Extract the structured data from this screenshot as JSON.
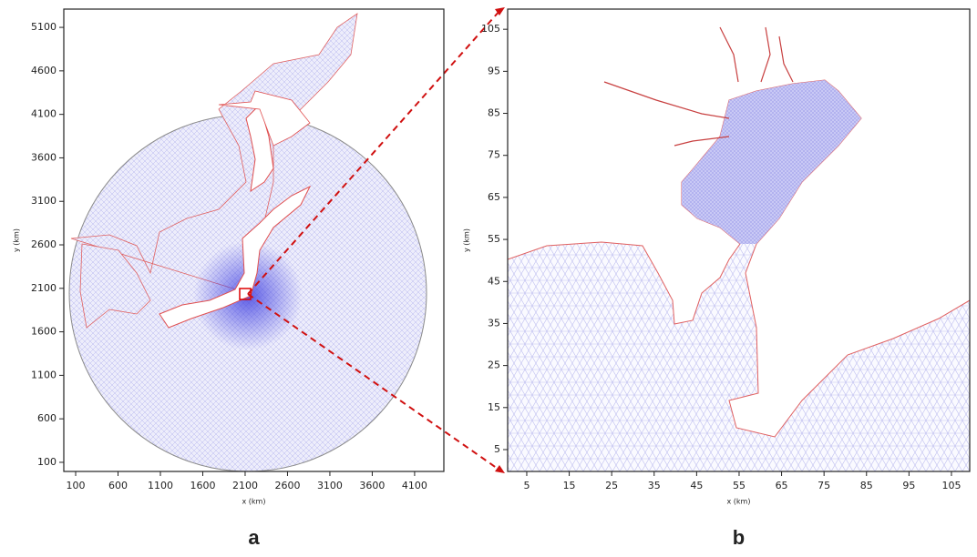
{
  "panels": [
    {
      "xlabel": "x (km)",
      "ylabel": "y (km)",
      "caption": "a",
      "xlim": [
        -40,
        4445
      ],
      "ylim": [
        -5,
        5310
      ],
      "xticks": [
        100,
        600,
        1100,
        1600,
        2100,
        2600,
        3100,
        3600,
        4100
      ],
      "yticks": [
        100,
        600,
        1100,
        1600,
        2100,
        2600,
        3100,
        3600,
        4100,
        4600,
        5100
      ]
    },
    {
      "xlabel": "x (km)",
      "ylabel": "y (km)",
      "caption": "b",
      "xlim": [
        0.5,
        109.3
      ],
      "ylim": [
        -0.2,
        109.8
      ],
      "xticks": [
        5,
        15,
        25,
        35,
        45,
        55,
        65,
        75,
        85,
        95,
        105
      ],
      "yticks": [
        5,
        15,
        25,
        35,
        45,
        55,
        65,
        75,
        85,
        95,
        105
      ]
    }
  ]
}
